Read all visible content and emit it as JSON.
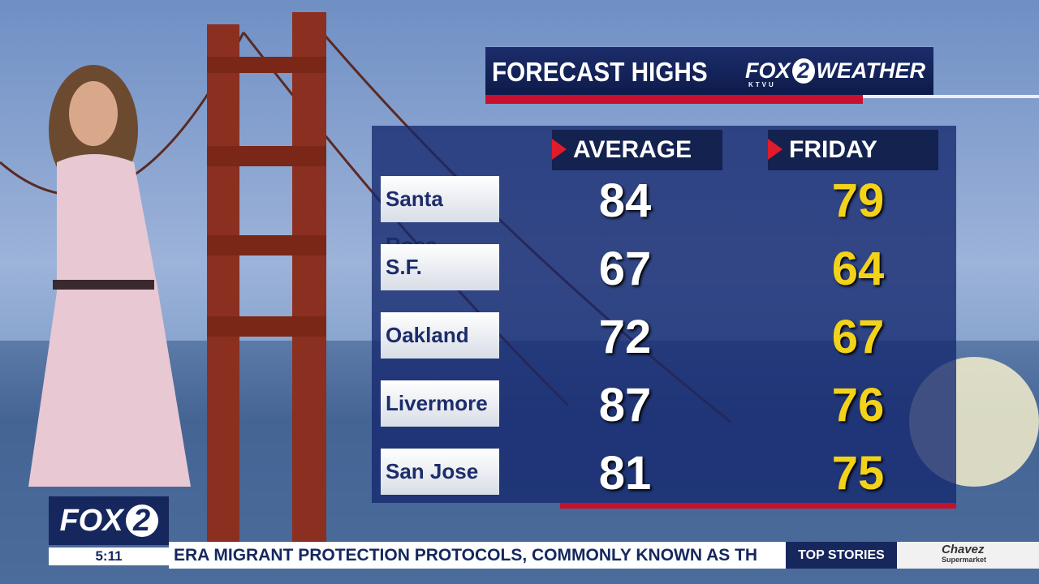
{
  "header": {
    "title": "FORECAST HIGHS",
    "brand": "FOX",
    "brand_number": "2",
    "station": "KTVU",
    "section": "WEATHER"
  },
  "table": {
    "columns": [
      "AVERAGE",
      "FRIDAY"
    ],
    "rows": [
      [
        "Santa Rosa",
        84,
        79
      ],
      [
        "S.F.",
        67,
        64
      ],
      [
        "Oakland",
        72,
        67
      ],
      [
        "Livermore",
        87,
        76
      ],
      [
        "San Jose",
        81,
        75
      ]
    ]
  },
  "footer": {
    "logo": "FOX",
    "logo_number": "2",
    "time": "5:11",
    "ticker": "ERA MIGRANT PROTECTION PROTOCOLS, COMMONLY KNOWN AS TH",
    "ticker_label": "TOP STORIES",
    "sponsor": "Chavez",
    "sponsor_sub": "Supermarket"
  }
}
